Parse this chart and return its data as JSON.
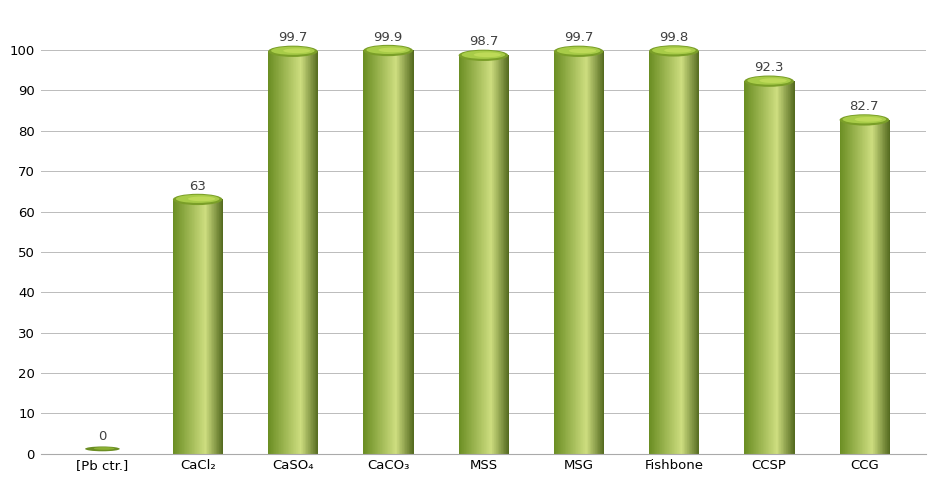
{
  "categories": [
    "[Pb ctr.]",
    "CaCl₂",
    "CaSO₄",
    "CaCO₃",
    "MSS",
    "MSG",
    "Fishbone",
    "CCSP",
    "CCG"
  ],
  "values": [
    0,
    63,
    99.7,
    99.9,
    98.7,
    99.7,
    99.8,
    92.3,
    82.7
  ],
  "bar_color_dark": "#6B8E23",
  "bar_color_mid": "#8FBC3A",
  "bar_color_light": "#B8D96A",
  "bar_color_highlight": "#CEDE80",
  "bar_color_shadow": "#556B20",
  "ellipse_top_color": "#9ABF3A",
  "ellipse_highlight": "#D0E880",
  "background_color": "#FFFFFF",
  "grid_color": "#BBBBBB",
  "text_color": "#404040",
  "ylim": [
    0,
    110
  ],
  "yticks": [
    0,
    10,
    20,
    30,
    40,
    50,
    60,
    70,
    80,
    90,
    100
  ],
  "bar_width": 0.52,
  "value_fontsize": 9.5,
  "tick_fontsize": 9.5
}
